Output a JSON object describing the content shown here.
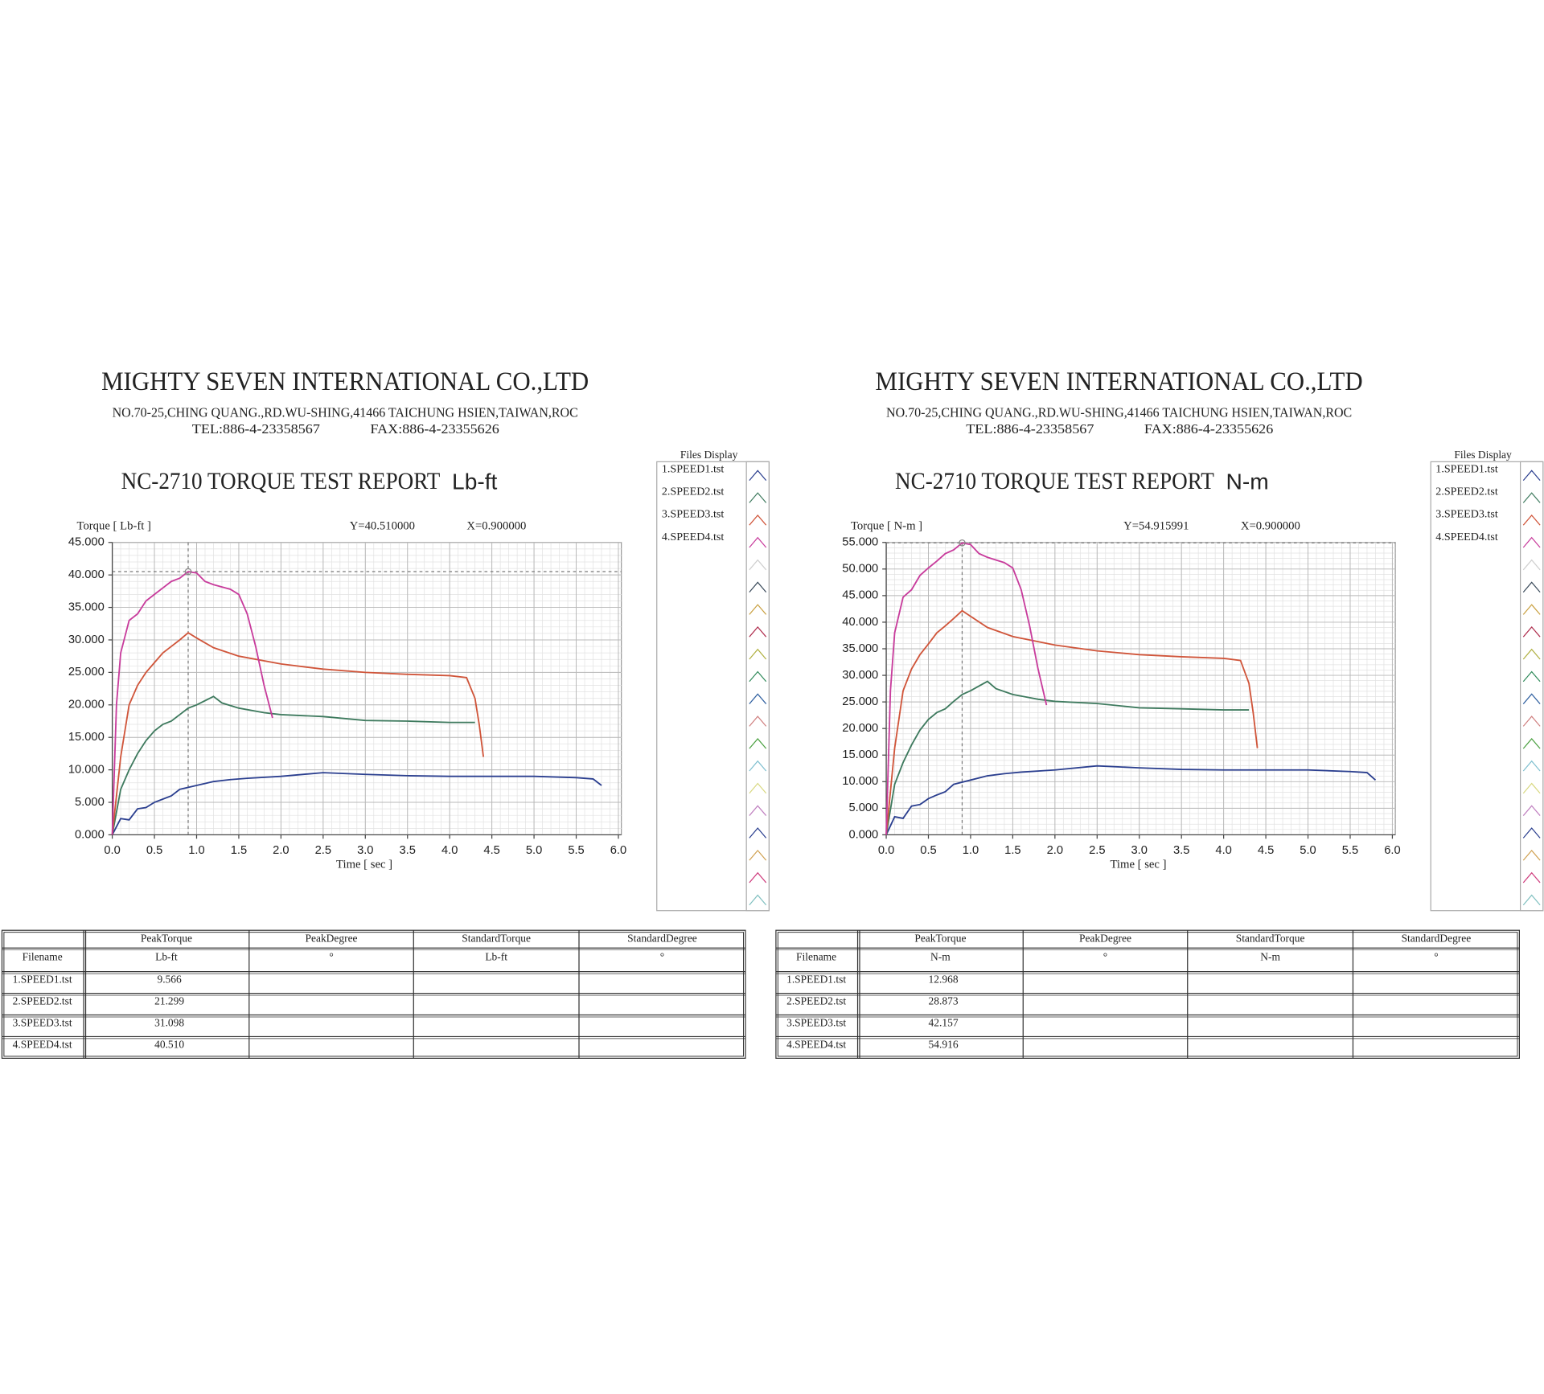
{
  "chart_data": [
    {
      "type": "line",
      "title": "NC-2710 TORQUE TEST REPORT",
      "title_unit": "Lb-ft",
      "ylabel": "Torque [ Lb-ft ]",
      "xlabel": "Time [ sec ]",
      "legend_title": "Files Display",
      "grid": true,
      "xlim": [
        0,
        6
      ],
      "ylim": [
        0,
        45
      ],
      "xticks": [
        {
          "value": 0,
          "label": "0.0"
        },
        {
          "value": 0.5,
          "label": "0.5"
        },
        {
          "value": 1,
          "label": "1.0"
        },
        {
          "value": 1.5,
          "label": "1.5"
        },
        {
          "value": 2,
          "label": "2.0"
        },
        {
          "value": 2.5,
          "label": "2.5"
        },
        {
          "value": 3,
          "label": "3.0"
        },
        {
          "value": 3.5,
          "label": "3.5"
        },
        {
          "value": 4,
          "label": "4.0"
        },
        {
          "value": 4.5,
          "label": "4.5"
        },
        {
          "value": 5,
          "label": "5.0"
        },
        {
          "value": 5.5,
          "label": "5.5"
        },
        {
          "value": 6,
          "label": "6.0"
        }
      ],
      "yticks": [
        {
          "value": 0,
          "label": "0.000"
        },
        {
          "value": 5,
          "label": "5.000"
        },
        {
          "value": 10,
          "label": "10.000"
        },
        {
          "value": 15,
          "label": "15.000"
        },
        {
          "value": 20,
          "label": "20.000"
        },
        {
          "value": 25,
          "label": "25.000"
        },
        {
          "value": 30,
          "label": "30.000"
        },
        {
          "value": 35,
          "label": "35.000"
        },
        {
          "value": 40,
          "label": "40.000"
        },
        {
          "value": 45,
          "label": "45.000"
        }
      ],
      "cursor": {
        "x": 0.9,
        "y": 40.51,
        "y_label": "Y=40.510000",
        "x_label": "X=0.900000"
      },
      "series": [
        {
          "name": "1.SPEED1.tst",
          "color": "#2b3f8f",
          "x": [
            0,
            0.1,
            0.2,
            0.3,
            0.4,
            0.5,
            0.6,
            0.7,
            0.8,
            1.0,
            1.2,
            1.4,
            1.6,
            2.0,
            2.5,
            3.0,
            3.5,
            4.0,
            4.5,
            5.0,
            5.5,
            5.7,
            5.8
          ],
          "values": [
            0,
            2.5,
            2.3,
            4,
            4.2,
            5,
            5.5,
            6,
            7,
            7.6,
            8.2,
            8.5,
            8.7,
            9,
            9.566,
            9.3,
            9.1,
            9,
            9,
            9,
            8.8,
            8.6,
            7.6
          ]
        },
        {
          "name": "2.SPEED2.tst",
          "color": "#3e7a5e",
          "x": [
            0,
            0.1,
            0.2,
            0.3,
            0.4,
            0.5,
            0.6,
            0.7,
            0.8,
            0.9,
            1.0,
            1.2,
            1.3,
            1.5,
            1.8,
            2.0,
            2.5,
            3.0,
            3.5,
            4.0,
            4.3
          ],
          "values": [
            0,
            7,
            10,
            12.5,
            14.5,
            16,
            17,
            17.5,
            18.5,
            19.5,
            20,
            21.299,
            20.3,
            19.5,
            18.8,
            18.5,
            18.2,
            17.6,
            17.5,
            17.3,
            17.3
          ]
        },
        {
          "name": "3.SPEED3.tst",
          "color": "#d0553a",
          "x": [
            0,
            0.1,
            0.2,
            0.3,
            0.4,
            0.5,
            0.6,
            0.7,
            0.8,
            0.9,
            1.0,
            1.2,
            1.5,
            2.0,
            2.5,
            3.0,
            3.5,
            4.0,
            4.2,
            4.3,
            4.35,
            4.4
          ],
          "values": [
            0,
            12,
            20,
            23,
            25,
            26.5,
            28,
            29,
            30,
            31.098,
            30.3,
            28.8,
            27.5,
            26.3,
            25.5,
            25,
            24.7,
            24.5,
            24.2,
            21,
            17,
            12
          ]
        },
        {
          "name": "4.SPEED4.tst",
          "color": "#c83c9c",
          "x": [
            0,
            0.05,
            0.1,
            0.2,
            0.3,
            0.4,
            0.5,
            0.6,
            0.7,
            0.8,
            0.9,
            1.0,
            1.1,
            1.2,
            1.4,
            1.5,
            1.6,
            1.7,
            1.8,
            1.9
          ],
          "values": [
            0,
            20,
            28,
            33,
            34,
            36,
            37,
            38,
            39,
            39.5,
            40.51,
            40.3,
            39,
            38.5,
            37.8,
            37,
            34,
            29,
            23,
            18
          ]
        }
      ]
    },
    {
      "type": "line",
      "title": "NC-2710 TORQUE TEST REPORT",
      "title_unit": "N-m",
      "ylabel": "Torque [ N-m ]",
      "xlabel": "Time [ sec ]",
      "legend_title": "Files Display",
      "grid": true,
      "xlim": [
        0,
        6
      ],
      "ylim": [
        0,
        55
      ],
      "xticks": [
        {
          "value": 0,
          "label": "0.0"
        },
        {
          "value": 0.5,
          "label": "0.5"
        },
        {
          "value": 1,
          "label": "1.0"
        },
        {
          "value": 1.5,
          "label": "1.5"
        },
        {
          "value": 2,
          "label": "2.0"
        },
        {
          "value": 2.5,
          "label": "2.5"
        },
        {
          "value": 3,
          "label": "3.0"
        },
        {
          "value": 3.5,
          "label": "3.5"
        },
        {
          "value": 4,
          "label": "4.0"
        },
        {
          "value": 4.5,
          "label": "4.5"
        },
        {
          "value": 5,
          "label": "5.0"
        },
        {
          "value": 5.5,
          "label": "5.5"
        },
        {
          "value": 6,
          "label": "6.0"
        }
      ],
      "yticks": [
        {
          "value": 0,
          "label": "0.000"
        },
        {
          "value": 5,
          "label": "5.000"
        },
        {
          "value": 10,
          "label": "10.000"
        },
        {
          "value": 15,
          "label": "15.000"
        },
        {
          "value": 20,
          "label": "20.000"
        },
        {
          "value": 25,
          "label": "25.000"
        },
        {
          "value": 30,
          "label": "30.000"
        },
        {
          "value": 35,
          "label": "35.000"
        },
        {
          "value": 40,
          "label": "40.000"
        },
        {
          "value": 45,
          "label": "45.000"
        },
        {
          "value": 50,
          "label": "50.000"
        },
        {
          "value": 55,
          "label": "55.000"
        }
      ],
      "cursor": {
        "x": 0.9,
        "y": 54.915991,
        "y_label": "Y=54.915991",
        "x_label": "X=0.900000"
      },
      "series": [
        {
          "name": "1.SPEED1.tst",
          "color": "#2b3f8f",
          "x": [
            0,
            0.1,
            0.2,
            0.3,
            0.4,
            0.5,
            0.6,
            0.7,
            0.8,
            1.0,
            1.2,
            1.4,
            1.6,
            2.0,
            2.5,
            3.0,
            3.5,
            4.0,
            4.5,
            5.0,
            5.5,
            5.7,
            5.8
          ],
          "values": [
            0,
            3.4,
            3.1,
            5.4,
            5.7,
            6.8,
            7.5,
            8.1,
            9.5,
            10.3,
            11.1,
            11.5,
            11.8,
            12.2,
            12.968,
            12.6,
            12.3,
            12.2,
            12.2,
            12.2,
            11.9,
            11.7,
            10.3
          ]
        },
        {
          "name": "2.SPEED2.tst",
          "color": "#3e7a5e",
          "x": [
            0,
            0.1,
            0.2,
            0.3,
            0.4,
            0.5,
            0.6,
            0.7,
            0.8,
            0.9,
            1.0,
            1.2,
            1.3,
            1.5,
            1.8,
            2.0,
            2.5,
            3.0,
            3.5,
            4.0,
            4.3
          ],
          "values": [
            0,
            9.5,
            13.6,
            16.9,
            19.7,
            21.7,
            23,
            23.7,
            25.1,
            26.4,
            27.1,
            28.873,
            27.5,
            26.4,
            25.5,
            25.1,
            24.7,
            23.9,
            23.7,
            23.5,
            23.5
          ]
        },
        {
          "name": "3.SPEED3.tst",
          "color": "#d0553a",
          "x": [
            0,
            0.1,
            0.2,
            0.3,
            0.4,
            0.5,
            0.6,
            0.7,
            0.8,
            0.9,
            1.0,
            1.2,
            1.5,
            2.0,
            2.5,
            3.0,
            3.5,
            4.0,
            4.2,
            4.3,
            4.35,
            4.4
          ],
          "values": [
            0,
            16.3,
            27.1,
            31.2,
            33.9,
            35.9,
            38,
            39.3,
            40.7,
            42.157,
            41.1,
            39,
            37.3,
            35.7,
            34.6,
            33.9,
            33.5,
            33.2,
            32.8,
            28.5,
            23,
            16.3
          ]
        },
        {
          "name": "4.SPEED4.tst",
          "color": "#c83c9c",
          "x": [
            0,
            0.05,
            0.1,
            0.2,
            0.3,
            0.4,
            0.5,
            0.6,
            0.7,
            0.8,
            0.9,
            1.0,
            1.1,
            1.2,
            1.4,
            1.5,
            1.6,
            1.7,
            1.8,
            1.9
          ],
          "values": [
            0,
            27.1,
            38,
            44.7,
            46.1,
            48.8,
            50.2,
            51.5,
            52.9,
            53.6,
            54.916,
            54.6,
            52.9,
            52.2,
            51.2,
            50.2,
            46.1,
            39.3,
            31.2,
            24.4
          ]
        }
      ]
    }
  ],
  "reports": [
    {
      "company": "MIGHTY SEVEN INTERNATIONAL CO.,LTD",
      "address": "NO.70-25,CHING QUANG.,RD.WU-SHING,41466 TAICHUNG HSIEN,TAIWAN,ROC",
      "tel": "TEL:886-4-23358567",
      "fax": "FAX:886-4-23355626",
      "table": {
        "columns": [
          "PeakTorque",
          "PeakDegree",
          "StandardTorque",
          "StandardDegree"
        ],
        "filename_header": "Filename",
        "units": [
          "Lb-ft",
          "°",
          "Lb-ft",
          "°"
        ],
        "rows": [
          [
            "1.SPEED1.tst",
            "9.566"
          ],
          [
            "2.SPEED2.tst",
            "21.299"
          ],
          [
            "3.SPEED3.tst",
            "31.098"
          ],
          [
            "4.SPEED4.tst",
            "40.510"
          ]
        ]
      }
    },
    {
      "company": "MIGHTY SEVEN INTERNATIONAL CO.,LTD",
      "address": "NO.70-25,CHING QUANG.,RD.WU-SHING,41466 TAICHUNG HSIEN,TAIWAN,ROC",
      "tel": "TEL:886-4-23358567",
      "fax": "FAX:886-4-23355626",
      "table": {
        "columns": [
          "PeakTorque",
          "PeakDegree",
          "StandardTorque",
          "StandardDegree"
        ],
        "filename_header": "Filename",
        "units": [
          "N-m",
          "°",
          "N-m",
          "°"
        ],
        "rows": [
          [
            "1.SPEED1.tst",
            "12.968"
          ],
          [
            "2.SPEED2.tst",
            "28.873"
          ],
          [
            "3.SPEED3.tst",
            "42.157"
          ],
          [
            "4.SPEED4.tst",
            "54.916"
          ]
        ]
      }
    }
  ]
}
